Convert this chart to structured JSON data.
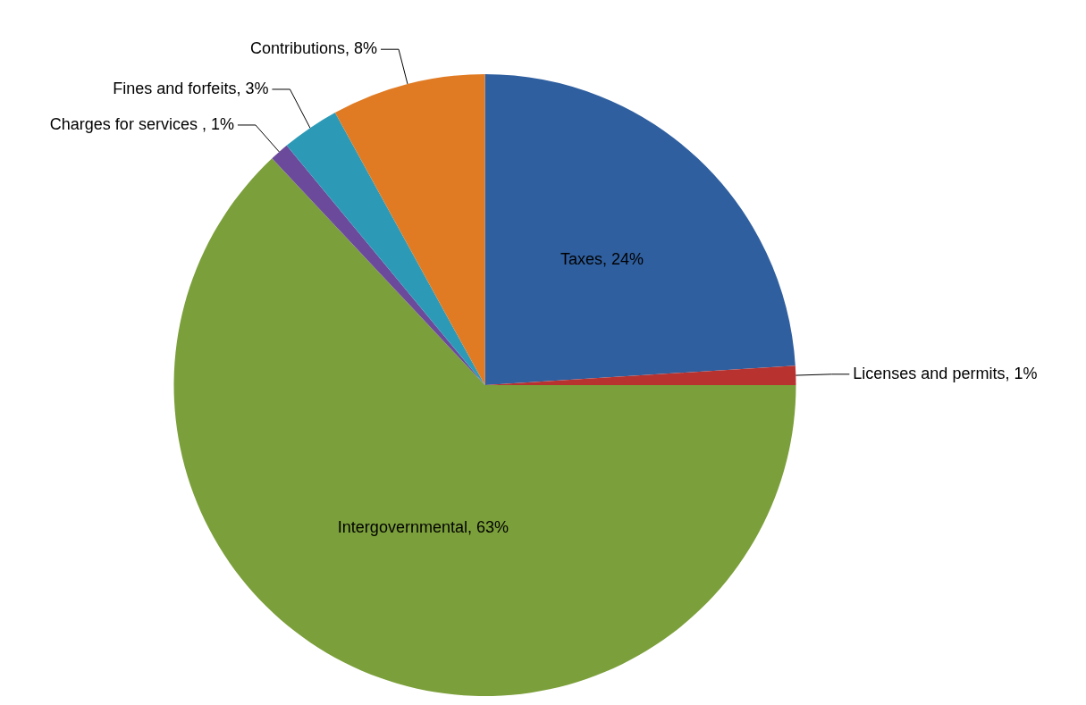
{
  "chart_data": {
    "type": "pie",
    "categories": [
      "Taxes",
      "Licenses and permits",
      "Intergovernmental",
      "Charges for services ",
      "Fines and forfeits",
      "Contributions"
    ],
    "values": [
      24,
      1,
      63,
      1,
      3,
      8
    ],
    "colors": [
      "#2f5f9f",
      "#b83330",
      "#7b9f3a",
      "#6b4a9b",
      "#2c9ab7",
      "#e07b24"
    ],
    "value_labels": [
      "24%",
      "1%",
      "63%",
      "1%",
      "3%",
      "8%"
    ],
    "legend": false
  }
}
